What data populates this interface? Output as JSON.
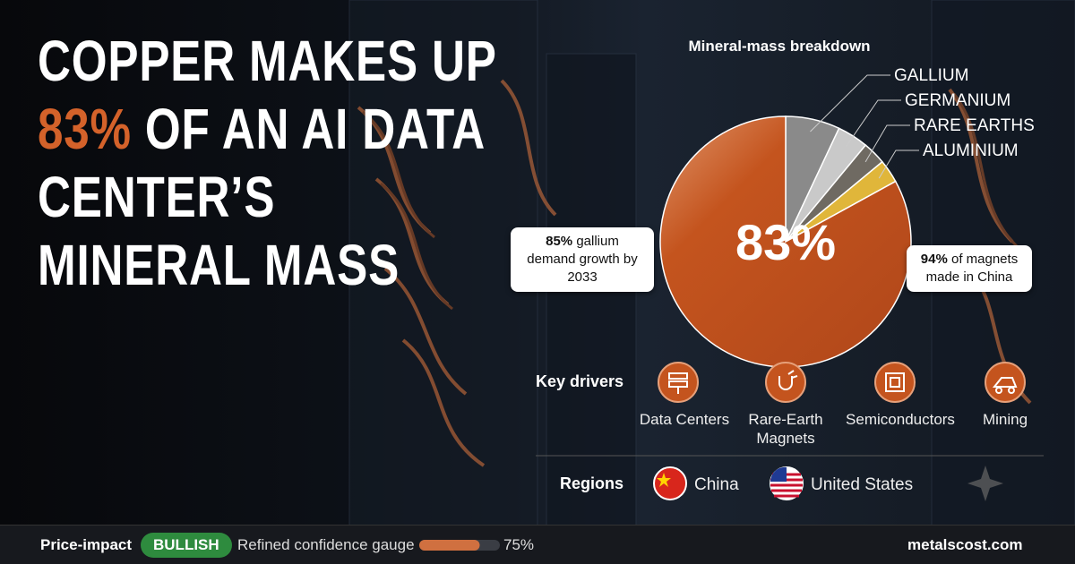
{
  "headline": {
    "before": "COPPER MAKES UP",
    "highlight": "83%",
    "after": "OF AN AI DATA CENTER’S MINERAL MASS"
  },
  "chart_data": {
    "type": "pie",
    "title": "Mineral-mass breakdown",
    "categories": [
      "GALLIUM",
      "GERMANIUM",
      "RARE EARTHS",
      "ALUMINIUM",
      null
    ],
    "values": [
      7,
      4,
      3,
      3,
      83
    ],
    "colors": [
      "#8a8a8a",
      "#c9c9c9",
      "#6f6a62",
      "#e0b63a",
      "#c4541e"
    ],
    "center_label": "83%"
  },
  "callouts": [
    {
      "figure": "85%",
      "text": "gallium demand growth by 2033"
    },
    {
      "figure": "94%",
      "text": "of magnets made in China"
    }
  ],
  "drivers": {
    "title": "Key drivers",
    "items": [
      "Data Centers",
      "Rare-Earth Magnets",
      "Semiconductors",
      "Mining"
    ]
  },
  "regions": {
    "title": "Regions",
    "items": [
      "China",
      "United States"
    ]
  },
  "footer": {
    "price_label": "Price-impact",
    "badge": "BULLISH",
    "gauge_label": "Refined confidence gauge",
    "gauge": {
      "value": 75,
      "label": "75%"
    },
    "gauge_lim": [
      0,
      100
    ],
    "site": "metalscost.com"
  }
}
